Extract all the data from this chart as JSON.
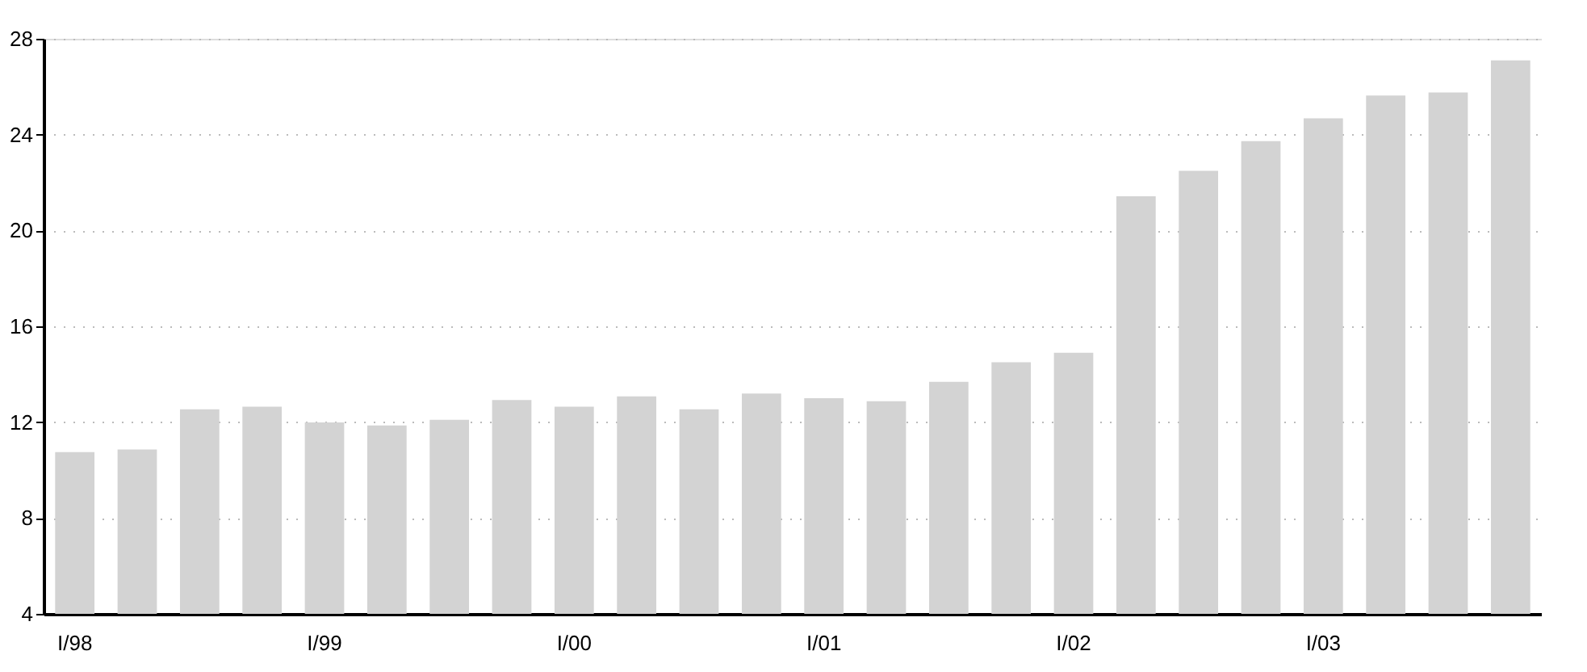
{
  "chart_data": {
    "type": "bar",
    "categories": [
      "I/98",
      null,
      null,
      null,
      "I/99",
      null,
      null,
      null,
      "I/00",
      null,
      null,
      null,
      "I/01",
      null,
      null,
      null,
      "I/02",
      null,
      null,
      null,
      "I/03",
      null,
      null,
      null
    ],
    "values": [
      10.75,
      10.86,
      12.54,
      12.65,
      11.99,
      11.86,
      12.1,
      12.92,
      12.65,
      13.08,
      12.54,
      13.19,
      13.0,
      12.87,
      13.68,
      14.5,
      14.9,
      21.43,
      22.49,
      23.73,
      24.68,
      25.63,
      25.76,
      27.1
    ],
    "color": "#d3d3d3",
    "ylim": [
      4,
      28
    ],
    "yticks": [
      4,
      8,
      12,
      16,
      20,
      24,
      28
    ],
    "grid": "y"
  }
}
